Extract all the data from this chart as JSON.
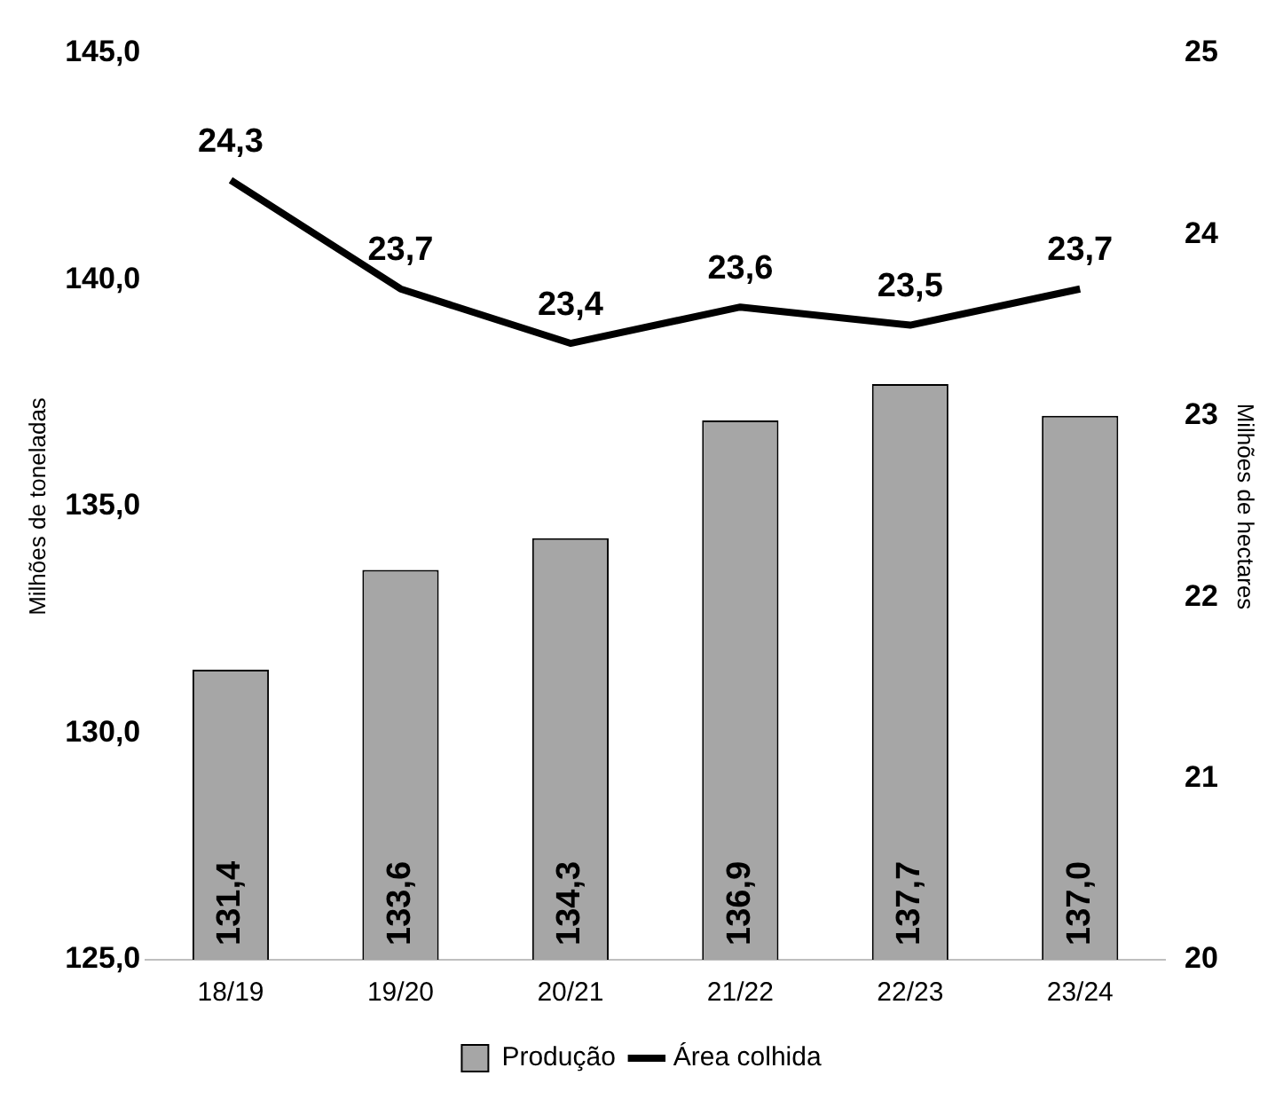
{
  "chart_data": {
    "type": "bar",
    "categories": [
      "18/19",
      "19/20",
      "20/21",
      "21/22",
      "22/23",
      "23/24"
    ],
    "ylabel": "Milhões de toneladas",
    "y2label": "Milhões de hectares",
    "ylim": [
      125,
      145
    ],
    "yticks": [
      {
        "value": 125,
        "label": "125,0"
      },
      {
        "value": 130,
        "label": "130,0"
      },
      {
        "value": 135,
        "label": "135,0"
      },
      {
        "value": 140,
        "label": "140,0"
      },
      {
        "value": 145,
        "label": "145,0"
      }
    ],
    "y2lim": [
      20,
      25
    ],
    "y2ticks": [
      20,
      21,
      22,
      23,
      24,
      25
    ],
    "grid": false,
    "legend": "bottom",
    "series": [
      {
        "name": "Produção",
        "color": "#a6a6a6",
        "values": [
          131.4,
          133.6,
          134.3,
          136.9,
          137.7,
          137.0
        ],
        "value_labels": [
          "131,4",
          "133,6",
          "134,3",
          "136,9",
          "137,7",
          "137,0"
        ]
      },
      {
        "name": "Área colhida",
        "type": "line",
        "axis": "y2",
        "color": "#000000",
        "values": [
          24.3,
          23.7,
          23.4,
          23.6,
          23.5,
          23.7
        ],
        "value_labels": [
          "24,3",
          "23,7",
          "23,4",
          "23,6",
          "23,5",
          "23,7"
        ]
      }
    ]
  }
}
